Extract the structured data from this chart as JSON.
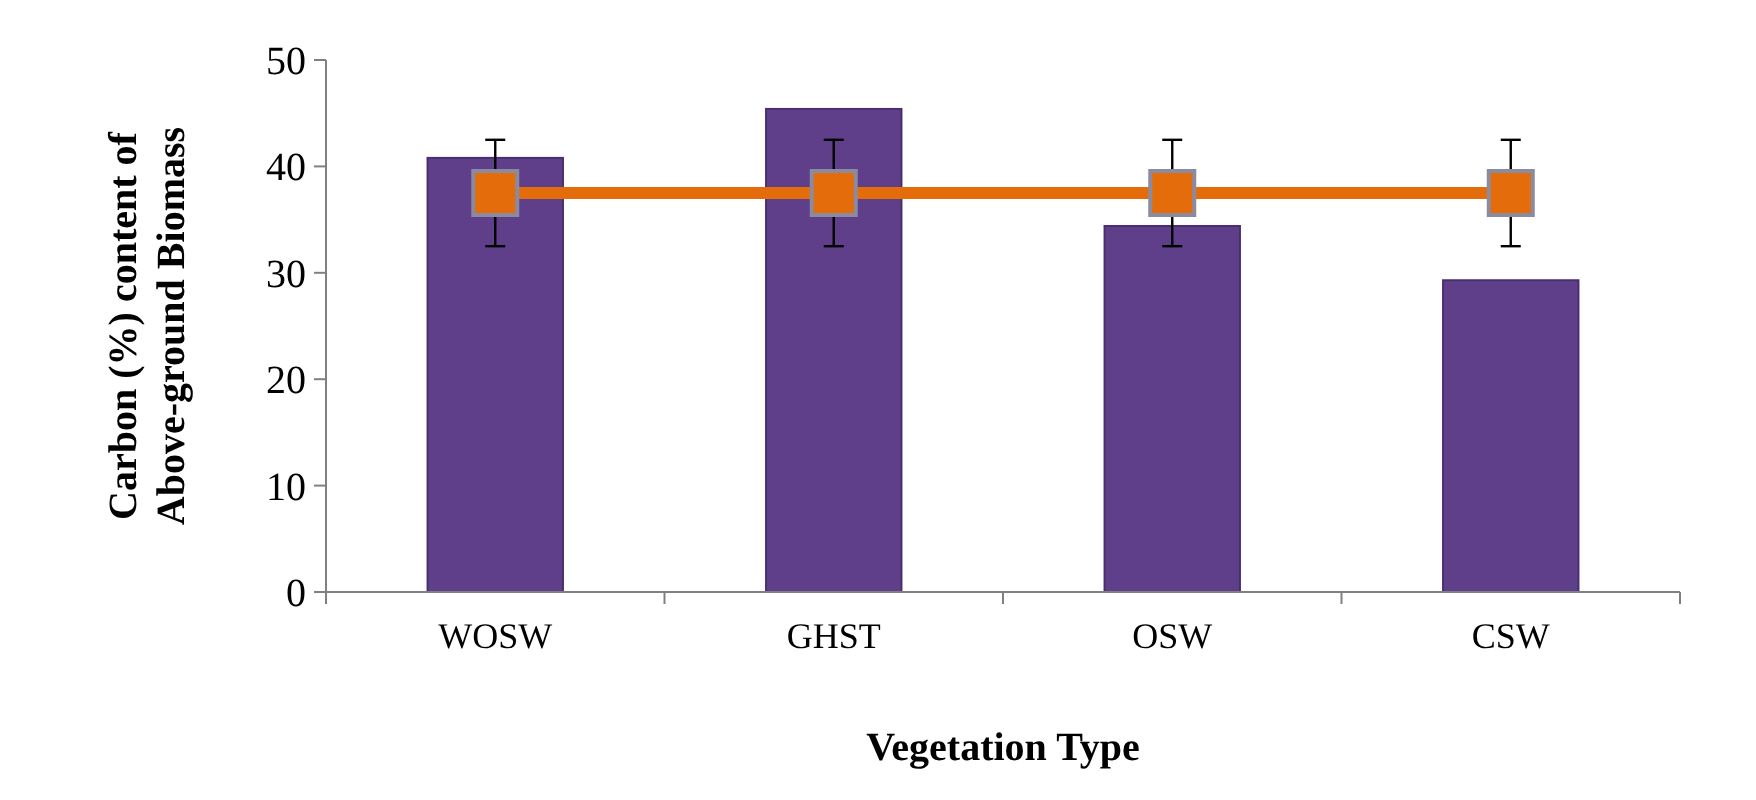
{
  "chart_data": {
    "type": "bar",
    "xlabel": "Vegetation Type",
    "ylabel": "Carbon (%) content of Above-ground Biomass",
    "categories": [
      "WOSW",
      "GHST",
      "OSW",
      "CSW"
    ],
    "series": [
      {
        "color": "#5f3f8a",
        "values": [
          40.8,
          45.4,
          34.4,
          29.3
        ]
      },
      {
        "type": "line",
        "color": "#e46c0a",
        "values": [
          37.5,
          37.5,
          37.5,
          37.5
        ],
        "errors": [
          5,
          5,
          5,
          5
        ],
        "marker": "square"
      }
    ],
    "ylim": [
      0,
      50
    ],
    "yticks": [
      0,
      10,
      20,
      30,
      40,
      50
    ],
    "grid": false
  }
}
